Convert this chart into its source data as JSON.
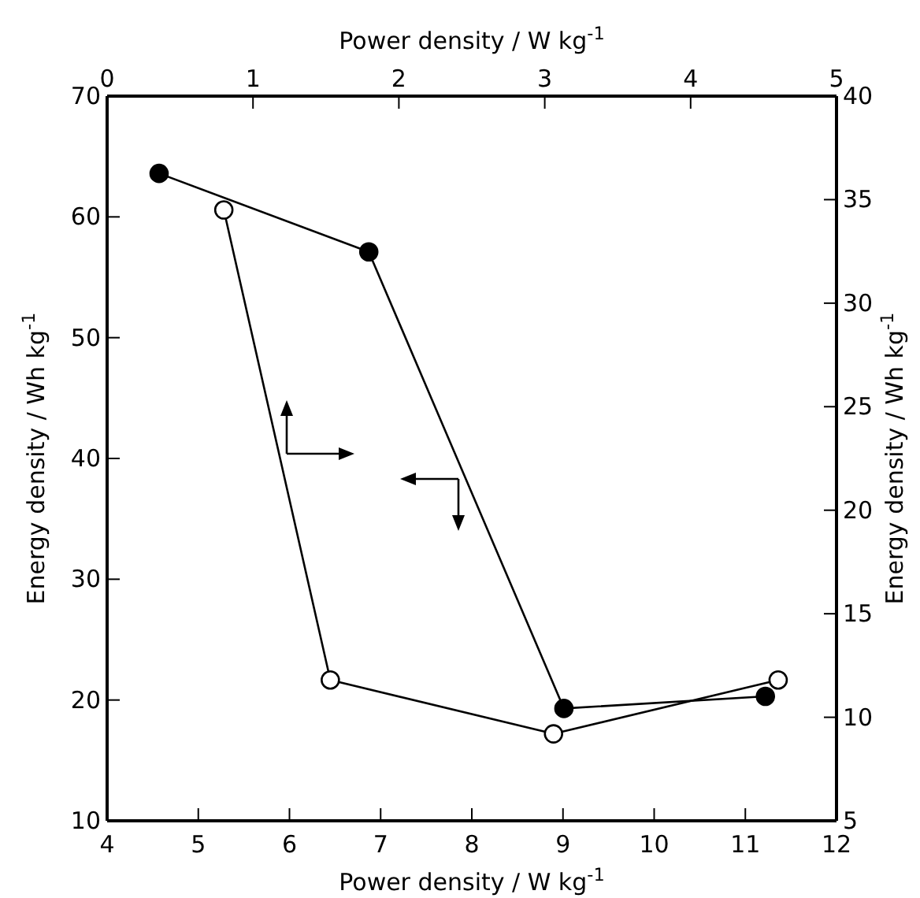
{
  "chart_data": [
    {
      "type": "line",
      "xlabel": "Power density / W kg$^{-1}$",
      "ylabel": "Energy density / Wh kg$^{-1}$",
      "xlim": [
        4,
        12
      ],
      "xticks": [
        4,
        5,
        6,
        7,
        8,
        9,
        10,
        11,
        12
      ],
      "ylim": [
        10,
        70
      ],
      "yticks": [
        10,
        20,
        30,
        40,
        50,
        60,
        70
      ],
      "marker": "circle",
      "grid": false,
      "series": [
        {
          "color": "#000000",
          "x": [
            4.57,
            6.87,
            9.01,
            11.22
          ],
          "values": [
            63.6,
            57.1,
            19.3,
            20.3
          ]
        }
      ]
    },
    {
      "type": "line",
      "xlabel": "Power density / W kg$^{-1}$",
      "ylabel": "Energy density / Wh kg$^{-1}$",
      "xlim": [
        0,
        5
      ],
      "xticks": [
        0,
        1,
        2,
        3,
        4,
        5
      ],
      "ylim": [
        5,
        40
      ],
      "yticks": [
        5,
        10,
        15,
        20,
        25,
        30,
        35,
        40
      ],
      "marker": "circle",
      "grid": false,
      "series": [
        {
          "color": "#000000",
          "x": [
            0.8,
            1.53,
            3.06,
            4.6
          ],
          "values": [
            34.5,
            11.8,
            9.2,
            11.8
          ]
        }
      ]
    }
  ]
}
